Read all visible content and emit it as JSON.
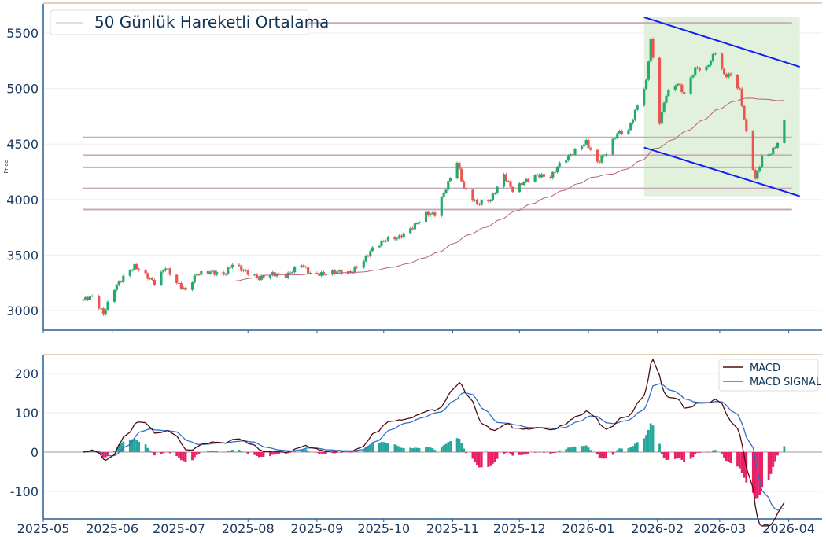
{
  "chart_data": [
    {
      "type": "candlestick",
      "title": "",
      "ylabel": "Price",
      "ylim": [
        2823,
        5762
      ],
      "xlim": [
        "2025-05-01",
        "2026-04-16"
      ],
      "yticks": [
        3000,
        3500,
        4000,
        4500,
        5000,
        5500
      ],
      "legend": {
        "entries": [
          "50 Günlük Hareketli Ortalama"
        ],
        "placement": "top-left"
      },
      "ma_window": 50,
      "close_keyframes": [
        [
          "2025-05-19",
          3100
        ],
        [
          "2025-05-23",
          3130
        ],
        [
          "2025-05-28",
          2970
        ],
        [
          "2025-06-02",
          3200
        ],
        [
          "2025-06-06",
          3300
        ],
        [
          "2025-06-11",
          3400
        ],
        [
          "2025-06-16",
          3320
        ],
        [
          "2025-06-20",
          3250
        ],
        [
          "2025-06-25",
          3390
        ],
        [
          "2025-06-30",
          3250
        ],
        [
          "2025-07-04",
          3180
        ],
        [
          "2025-07-09",
          3330
        ],
        [
          "2025-07-15",
          3350
        ],
        [
          "2025-07-21",
          3320
        ],
        [
          "2025-07-25",
          3420
        ],
        [
          "2025-07-31",
          3350
        ],
        [
          "2025-08-06",
          3290
        ],
        [
          "2025-08-12",
          3330
        ],
        [
          "2025-08-18",
          3310
        ],
        [
          "2025-08-25",
          3420
        ],
        [
          "2025-08-29",
          3330
        ],
        [
          "2025-09-04",
          3330
        ],
        [
          "2025-09-10",
          3350
        ],
        [
          "2025-09-16",
          3340
        ],
        [
          "2025-09-22",
          3450
        ],
        [
          "2025-09-26",
          3560
        ],
        [
          "2025-10-02",
          3640
        ],
        [
          "2025-10-08",
          3660
        ],
        [
          "2025-10-14",
          3750
        ],
        [
          "2025-10-20",
          3870
        ],
        [
          "2025-10-24",
          3870
        ],
        [
          "2025-10-30",
          4150
        ],
        [
          "2025-11-03",
          4340
        ],
        [
          "2025-11-06",
          4100
        ],
        [
          "2025-11-12",
          3960
        ],
        [
          "2025-11-18",
          4000
        ],
        [
          "2025-11-24",
          4220
        ],
        [
          "2025-11-28",
          4080
        ],
        [
          "2025-12-03",
          4160
        ],
        [
          "2025-12-09",
          4220
        ],
        [
          "2025-12-15",
          4200
        ],
        [
          "2025-12-19",
          4320
        ],
        [
          "2025-12-25",
          4420
        ],
        [
          "2025-12-31",
          4520
        ],
        [
          "2026-01-05",
          4330
        ],
        [
          "2026-01-09",
          4420
        ],
        [
          "2026-01-14",
          4600
        ],
        [
          "2026-01-19",
          4620
        ],
        [
          "2026-01-23",
          4850
        ],
        [
          "2026-01-27",
          5060
        ],
        [
          "2026-01-29",
          5450
        ],
        [
          "2026-02-02",
          4700
        ],
        [
          "2026-02-05",
          4950
        ],
        [
          "2026-02-10",
          5050
        ],
        [
          "2026-02-13",
          4950
        ],
        [
          "2026-02-18",
          5180
        ],
        [
          "2026-02-23",
          5180
        ],
        [
          "2026-02-27",
          5330
        ],
        [
          "2026-03-03",
          5120
        ],
        [
          "2026-03-06",
          5120
        ],
        [
          "2026-03-10",
          4980
        ],
        [
          "2026-03-13",
          4600
        ],
        [
          "2026-03-17",
          4180
        ],
        [
          "2026-03-20",
          4380
        ],
        [
          "2026-03-24",
          4420
        ],
        [
          "2026-03-27",
          4510
        ],
        [
          "2026-03-30",
          4700
        ]
      ],
      "horizontal_levels": [
        5590,
        4560,
        4400,
        4290,
        4100,
        3910
      ],
      "channel": {
        "upper": [
          [
            "2026-01-26",
            5642
          ],
          [
            "2026-04-06",
            5195
          ]
        ],
        "lower": [
          [
            "2026-01-26",
            4469
          ],
          [
            "2026-04-06",
            4030
          ]
        ]
      },
      "colors": {
        "up": "#26a96c",
        "down": "#ef5350",
        "ma": "#b5607f",
        "level": "#c9a8b8",
        "channel": "#1020ee",
        "channel_fill": "#dcefd6"
      }
    },
    {
      "type": "macd",
      "ylim": [
        -170,
        246
      ],
      "yticks": [
        -100,
        0,
        100,
        200
      ],
      "xticks": [
        "2025-05",
        "2025-06",
        "2025-07",
        "2025-08",
        "2025-09",
        "2025-10",
        "2025-11",
        "2025-12",
        "2026-01",
        "2026-02",
        "2026-03",
        "2026-04"
      ],
      "legend": {
        "entries": [
          "MACD",
          "MACD SIGNAL"
        ],
        "placement": "top-right"
      },
      "params": {
        "fast": 12,
        "slow": 26,
        "signal": 9
      },
      "colors": {
        "macd": "#4a0f0f",
        "signal": "#2f6fd0",
        "hist_pos": "#26a69a",
        "hist_neg": "#e91e63"
      }
    }
  ]
}
